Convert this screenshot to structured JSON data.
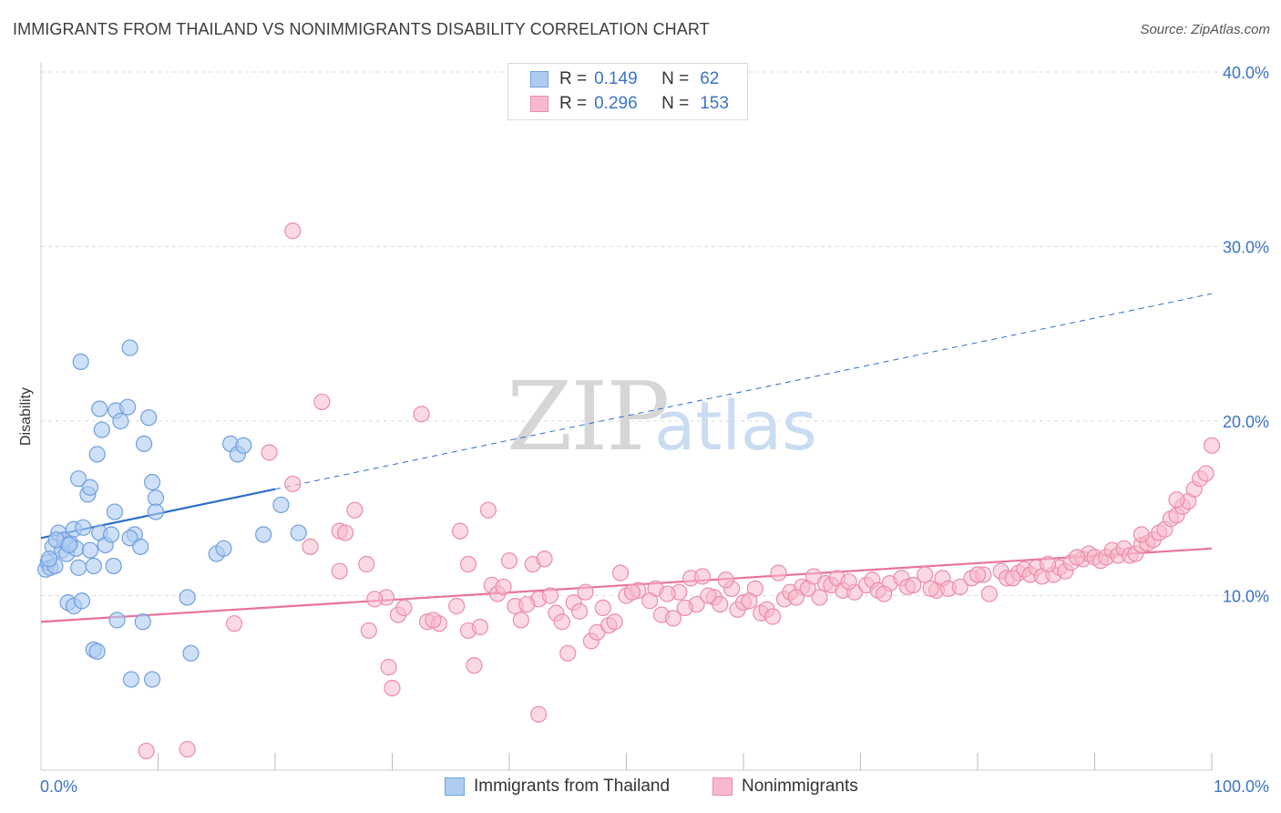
{
  "header": {
    "title": "IMMIGRANTS FROM THAILAND VS NONIMMIGRANTS DISABILITY CORRELATION CHART",
    "source": "Source: ZipAtlas.com"
  },
  "legend": {
    "rows": [
      {
        "r_label": "R =",
        "r_value": "0.149",
        "n_label": "N =",
        "n_value": "62"
      },
      {
        "r_label": "R =",
        "r_value": "0.296",
        "n_label": "N =",
        "n_value": "153"
      }
    ]
  },
  "watermark": {
    "zip": "ZIP",
    "atlas": "atlas"
  },
  "colors": {
    "thai_fill": "#aeccf2",
    "thai_stroke": "#6f9fde",
    "thai_line": "#2a6fce",
    "non_fill": "#f8b9cc",
    "non_stroke": "#ec8caa",
    "non_line": "#e8739b",
    "grid": "#dddddd",
    "tick_label": "#3b73c8"
  },
  "chart_data": {
    "type": "scatter",
    "title": "IMMIGRANTS FROM THAILAND VS NONIMMIGRANTS DISABILITY CORRELATION CHART",
    "xlabel": "",
    "ylabel": "Disability",
    "xlim": [
      0,
      100
    ],
    "ylim": [
      0,
      40
    ],
    "x_tick_labels": [
      "0.0%",
      "100.0%"
    ],
    "y_ticks": [
      10,
      20,
      30,
      40
    ],
    "y_tick_labels": [
      "10.0%",
      "20.0%",
      "30.0%",
      "40.0%"
    ],
    "grid": true,
    "legend_position": "bottom",
    "series": [
      {
        "name": "Immigrants from Thailand",
        "R": 0.149,
        "N": 62,
        "trend": {
          "x0": 0,
          "y0": 13.3,
          "x1": 100,
          "y1": 27.3,
          "solid_until_x": 20
        },
        "points": [
          [
            0.4,
            11.5
          ],
          [
            0.6,
            11.9
          ],
          [
            0.8,
            11.6
          ],
          [
            1.0,
            12.8
          ],
          [
            1.2,
            11.7
          ],
          [
            0.7,
            12.1
          ],
          [
            1.5,
            13.6
          ],
          [
            1.8,
            12.6
          ],
          [
            2.0,
            13.2
          ],
          [
            2.2,
            12.4
          ],
          [
            2.5,
            13.0
          ],
          [
            2.8,
            13.8
          ],
          [
            3.0,
            12.7
          ],
          [
            3.2,
            11.6
          ],
          [
            1.3,
            13.2
          ],
          [
            2.4,
            12.9
          ],
          [
            3.6,
            13.9
          ],
          [
            4.2,
            12.6
          ],
          [
            4.5,
            11.7
          ],
          [
            5.0,
            13.6
          ],
          [
            5.5,
            12.9
          ],
          [
            6.2,
            11.7
          ],
          [
            2.3,
            9.6
          ],
          [
            2.8,
            9.4
          ],
          [
            3.5,
            9.7
          ],
          [
            4.0,
            15.8
          ],
          [
            3.2,
            16.7
          ],
          [
            4.2,
            16.2
          ],
          [
            4.8,
            18.1
          ],
          [
            6.3,
            14.8
          ],
          [
            5.0,
            20.7
          ],
          [
            3.4,
            23.4
          ],
          [
            5.2,
            19.5
          ],
          [
            6.4,
            20.6
          ],
          [
            6.8,
            20.0
          ],
          [
            7.4,
            20.8
          ],
          [
            7.6,
            24.2
          ],
          [
            8.0,
            13.5
          ],
          [
            6.0,
            13.5
          ],
          [
            7.6,
            13.3
          ],
          [
            8.5,
            12.8
          ],
          [
            9.2,
            20.2
          ],
          [
            8.8,
            18.7
          ],
          [
            9.8,
            15.6
          ],
          [
            9.5,
            16.5
          ],
          [
            9.8,
            14.8
          ],
          [
            8.7,
            8.5
          ],
          [
            4.5,
            6.9
          ],
          [
            4.8,
            6.8
          ],
          [
            9.5,
            5.2
          ],
          [
            7.7,
            5.2
          ],
          [
            12.5,
            9.9
          ],
          [
            12.8,
            6.7
          ],
          [
            15.0,
            12.4
          ],
          [
            15.6,
            12.7
          ],
          [
            16.2,
            18.7
          ],
          [
            16.8,
            18.1
          ],
          [
            17.3,
            18.6
          ],
          [
            19.0,
            13.5
          ],
          [
            22.0,
            13.6
          ],
          [
            20.5,
            15.2
          ],
          [
            6.5,
            8.6
          ]
        ]
      },
      {
        "name": "Nonimmigrants",
        "R": 0.296,
        "N": 153,
        "trend": {
          "x0": 0,
          "y0": 8.5,
          "x1": 100,
          "y1": 12.7
        },
        "points": [
          [
            21.5,
            30.9
          ],
          [
            24.0,
            21.1
          ],
          [
            32.5,
            20.4
          ],
          [
            19.5,
            18.2
          ],
          [
            21.5,
            16.4
          ],
          [
            26.8,
            14.9
          ],
          [
            38.2,
            14.9
          ],
          [
            25.5,
            13.7
          ],
          [
            26.0,
            13.6
          ],
          [
            35.8,
            13.7
          ],
          [
            27.8,
            11.8
          ],
          [
            25.5,
            11.4
          ],
          [
            36.5,
            11.8
          ],
          [
            40.0,
            12.0
          ],
          [
            42.0,
            11.8
          ],
          [
            16.5,
            8.4
          ],
          [
            9.0,
            1.1
          ],
          [
            12.5,
            1.2
          ],
          [
            28.0,
            8.0
          ],
          [
            29.5,
            9.9
          ],
          [
            30.5,
            8.9
          ],
          [
            31.0,
            9.3
          ],
          [
            33.0,
            8.5
          ],
          [
            34.0,
            8.4
          ],
          [
            35.5,
            9.4
          ],
          [
            36.5,
            8.0
          ],
          [
            37.0,
            6.0
          ],
          [
            38.5,
            10.6
          ],
          [
            39.0,
            10.1
          ],
          [
            40.5,
            9.4
          ],
          [
            41.0,
            8.6
          ],
          [
            42.5,
            9.8
          ],
          [
            44.0,
            9.0
          ],
          [
            44.5,
            8.5
          ],
          [
            45.0,
            6.7
          ],
          [
            45.5,
            9.6
          ],
          [
            46.5,
            10.2
          ],
          [
            47.0,
            7.4
          ],
          [
            47.5,
            7.9
          ],
          [
            48.5,
            8.3
          ],
          [
            49.0,
            8.5
          ],
          [
            49.5,
            11.3
          ],
          [
            50.0,
            10.0
          ],
          [
            51.0,
            10.3
          ],
          [
            52.5,
            10.4
          ],
          [
            53.0,
            8.9
          ],
          [
            54.0,
            8.7
          ],
          [
            54.5,
            10.2
          ],
          [
            55.5,
            11.0
          ],
          [
            56.0,
            9.5
          ],
          [
            56.5,
            11.1
          ],
          [
            57.5,
            9.9
          ],
          [
            58.0,
            9.5
          ],
          [
            59.0,
            10.4
          ],
          [
            59.5,
            9.2
          ],
          [
            60.0,
            9.6
          ],
          [
            61.0,
            10.4
          ],
          [
            61.5,
            9.0
          ],
          [
            62.0,
            9.2
          ],
          [
            62.5,
            8.8
          ],
          [
            63.0,
            11.3
          ],
          [
            63.5,
            9.8
          ],
          [
            64.0,
            10.2
          ],
          [
            65.0,
            10.5
          ],
          [
            65.5,
            10.4
          ],
          [
            66.0,
            11.1
          ],
          [
            66.5,
            9.9
          ],
          [
            67.0,
            10.7
          ],
          [
            67.5,
            10.6
          ],
          [
            68.0,
            11.0
          ],
          [
            68.5,
            10.3
          ],
          [
            69.5,
            10.2
          ],
          [
            70.5,
            10.6
          ],
          [
            71.0,
            10.9
          ],
          [
            71.5,
            10.3
          ],
          [
            72.5,
            10.7
          ],
          [
            73.5,
            11.0
          ],
          [
            74.0,
            10.5
          ],
          [
            74.5,
            10.6
          ],
          [
            75.5,
            11.2
          ],
          [
            76.5,
            10.3
          ],
          [
            77.0,
            11.0
          ],
          [
            77.5,
            10.4
          ],
          [
            78.5,
            10.5
          ],
          [
            79.5,
            11.0
          ],
          [
            80.5,
            11.2
          ],
          [
            81.0,
            10.1
          ],
          [
            82.0,
            11.4
          ],
          [
            82.5,
            11.0
          ],
          [
            83.5,
            11.3
          ],
          [
            84.0,
            11.5
          ],
          [
            84.5,
            11.2
          ],
          [
            85.0,
            11.6
          ],
          [
            85.5,
            11.1
          ],
          [
            86.5,
            11.2
          ],
          [
            87.0,
            11.6
          ],
          [
            87.5,
            11.4
          ],
          [
            88.0,
            11.9
          ],
          [
            89.0,
            12.1
          ],
          [
            89.5,
            12.4
          ],
          [
            90.0,
            12.2
          ],
          [
            90.5,
            12.0
          ],
          [
            91.0,
            12.2
          ],
          [
            91.5,
            12.6
          ],
          [
            92.0,
            12.3
          ],
          [
            92.5,
            12.7
          ],
          [
            93.0,
            12.3
          ],
          [
            93.5,
            12.4
          ],
          [
            94.0,
            12.9
          ],
          [
            94.5,
            13.0
          ],
          [
            95.0,
            13.2
          ],
          [
            95.5,
            13.6
          ],
          [
            96.0,
            13.8
          ],
          [
            96.5,
            14.4
          ],
          [
            97.0,
            14.6
          ],
          [
            97.5,
            15.1
          ],
          [
            98.0,
            15.4
          ],
          [
            98.5,
            16.1
          ],
          [
            99.0,
            16.7
          ],
          [
            99.5,
            17.0
          ],
          [
            100.0,
            18.6
          ],
          [
            43.0,
            12.1
          ],
          [
            23.0,
            12.8
          ],
          [
            41.5,
            9.5
          ],
          [
            28.5,
            9.8
          ],
          [
            33.5,
            8.6
          ],
          [
            37.5,
            8.2
          ],
          [
            39.5,
            10.5
          ],
          [
            43.5,
            10.0
          ],
          [
            46.0,
            9.1
          ],
          [
            48.0,
            9.3
          ],
          [
            50.5,
            10.2
          ],
          [
            52.0,
            9.7
          ],
          [
            53.5,
            10.1
          ],
          [
            55.0,
            9.3
          ],
          [
            57.0,
            10.0
          ],
          [
            58.5,
            10.9
          ],
          [
            60.5,
            9.7
          ],
          [
            64.5,
            9.9
          ],
          [
            69.0,
            10.8
          ],
          [
            72.0,
            10.1
          ],
          [
            76.0,
            10.4
          ],
          [
            80.0,
            11.2
          ],
          [
            83.0,
            11.0
          ],
          [
            86.0,
            11.8
          ],
          [
            88.5,
            12.2
          ],
          [
            94.0,
            13.5
          ],
          [
            97.0,
            15.5
          ],
          [
            42.5,
            3.2
          ],
          [
            30.0,
            4.7
          ],
          [
            29.7,
            5.9
          ]
        ]
      }
    ]
  },
  "bottom_legend": {
    "items": [
      {
        "label": "Immigrants from Thailand"
      },
      {
        "label": "Nonimmigrants"
      }
    ]
  }
}
